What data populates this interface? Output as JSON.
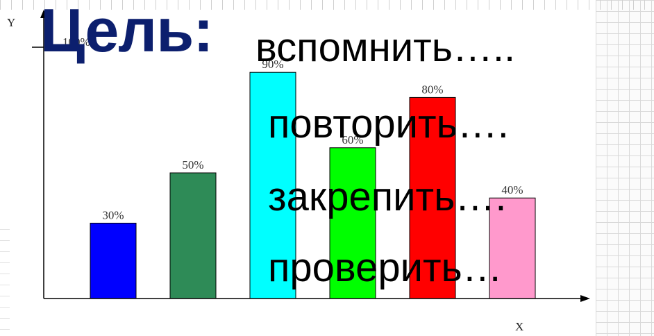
{
  "slide": {
    "goal_word": "Цель",
    "goal_colon": ":",
    "lines": [
      "вспомнить…..",
      "повторить….",
      "закрепить….",
      "проверить…"
    ]
  },
  "chart_data": {
    "type": "bar",
    "x_axis_label": "X",
    "y_axis_label": "Y",
    "top_tick_label": "100%",
    "ylim": [
      0,
      100
    ],
    "grid": false,
    "bars": [
      {
        "value": 30,
        "label": "30%",
        "color": "#0000ff"
      },
      {
        "value": 50,
        "label": "50%",
        "color": "#2e8b57"
      },
      {
        "value": 90,
        "label": "90%",
        "color": "#00ffff"
      },
      {
        "value": 60,
        "label": "60%",
        "color": "#00ff00"
      },
      {
        "value": 80,
        "label": "80%",
        "color": "#ff0000"
      },
      {
        "value": 40,
        "label": "40%",
        "color": "#ff99cc"
      }
    ]
  }
}
